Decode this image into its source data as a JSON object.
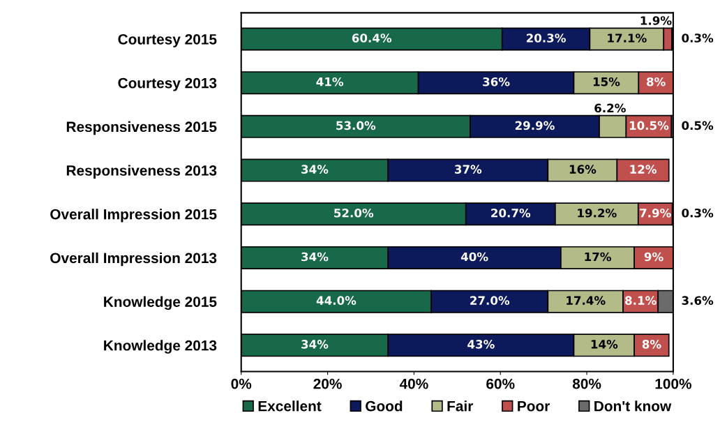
{
  "chart_data": {
    "type": "bar",
    "orientation": "horizontal",
    "stacked": true,
    "categories": [
      "Courtesy 2015",
      "Courtesy 2013",
      "Responsiveness 2015",
      "Responsiveness 2013",
      "Overall Impression 2015",
      "Overall Impression 2013",
      "Knowledge 2015",
      "Knowledge 2013"
    ],
    "series": [
      {
        "name": "Excellent",
        "color": "#17694a",
        "values": [
          60.4,
          41,
          53.0,
          34,
          52.0,
          34,
          44.0,
          34
        ],
        "value_labels": [
          "60.4%",
          "41%",
          "53.0%",
          "34%",
          "52.0%",
          "34%",
          "44.0%",
          "34%"
        ]
      },
      {
        "name": "Good",
        "color": "#0c1a5c",
        "values": [
          20.3,
          36,
          29.9,
          37,
          20.7,
          40,
          27.0,
          43
        ],
        "value_labels": [
          "20.3%",
          "36%",
          "29.9%",
          "37%",
          "20.7%",
          "40%",
          "27.0%",
          "43%"
        ]
      },
      {
        "name": "Fair",
        "color": "#b3bb88",
        "values": [
          17.1,
          15,
          6.2,
          16,
          19.2,
          17,
          17.4,
          14
        ],
        "value_labels": [
          "17.1%",
          "15%",
          "6.2%",
          "16%",
          "19.2%",
          "17%",
          "17.4%",
          "14%"
        ]
      },
      {
        "name": "Poor",
        "color": "#c0504d",
        "values": [
          1.9,
          8,
          10.5,
          12,
          7.9,
          9,
          8.1,
          8
        ],
        "value_labels": [
          "1.9%",
          "8%",
          "10.5%",
          "12%",
          "7.9%",
          "9%",
          "8.1%",
          "8%"
        ]
      },
      {
        "name": "Don't know",
        "color": "#6b6b6b",
        "values": [
          0.3,
          null,
          0.5,
          null,
          0.3,
          null,
          3.6,
          null
        ],
        "value_labels": [
          "0.3%",
          null,
          "0.5%",
          null,
          "0.3%",
          null,
          "3.6%",
          null
        ]
      }
    ],
    "xlim": [
      0,
      100
    ],
    "xticks": [
      {
        "value": 0,
        "label": "0%"
      },
      {
        "value": 20,
        "label": "20%"
      },
      {
        "value": 40,
        "label": "40%"
      },
      {
        "value": 60,
        "label": "60%"
      },
      {
        "value": 80,
        "label": "80%"
      },
      {
        "value": 100,
        "label": "100%"
      }
    ],
    "grid": false,
    "legend": "bottom"
  }
}
